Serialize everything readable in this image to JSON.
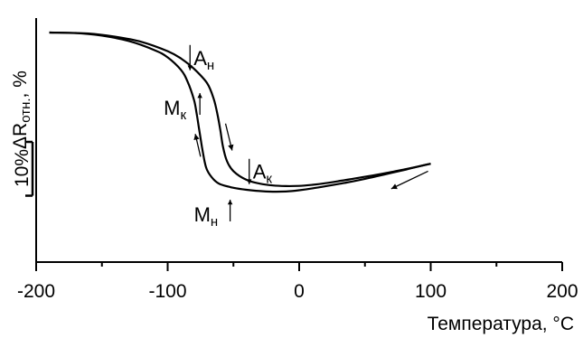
{
  "chart_data": {
    "type": "line",
    "title": "",
    "xlabel": "Температура, °С",
    "ylabel": "ΔR",
    "ylabel_sub": "отн.",
    "ylabel_unit": ", %",
    "xlim": [
      -200,
      200
    ],
    "xticks": [
      {
        "value": -200,
        "label": "-200"
      },
      {
        "value": -100,
        "label": "-100"
      },
      {
        "value": 0,
        "label": "0"
      },
      {
        "value": 100,
        "label": "100"
      },
      {
        "value": 200,
        "label": "200"
      }
    ],
    "x_minor_step": 50,
    "yticks": [],
    "grid": false,
    "legend": "none",
    "scale_bar": {
      "label": "10%",
      "value": 10
    },
    "series": [
      {
        "role": "cooling",
        "points": [
          [
            -190,
            100
          ],
          [
            -170,
            99.8
          ],
          [
            -150,
            98.5
          ],
          [
            -130,
            96
          ],
          [
            -110,
            91.5
          ],
          [
            -100,
            88
          ],
          [
            -90,
            82
          ],
          [
            -85,
            76.5
          ],
          [
            -80,
            67.5
          ],
          [
            -78,
            61
          ],
          [
            -76,
            53
          ],
          [
            -74,
            45
          ],
          [
            -72,
            38
          ],
          [
            -70,
            33.5
          ],
          [
            -65,
            29
          ],
          [
            -60,
            26.7
          ],
          [
            -50,
            25
          ],
          [
            -40,
            24
          ],
          [
            -30,
            23.4
          ],
          [
            -20,
            23.1
          ],
          [
            -10,
            23.2
          ],
          [
            0,
            23.8
          ],
          [
            10,
            24.7
          ],
          [
            20,
            25.7
          ],
          [
            30,
            26.8
          ],
          [
            40,
            28
          ],
          [
            50,
            29.3
          ],
          [
            60,
            30.7
          ],
          [
            70,
            32.2
          ],
          [
            80,
            33.6
          ],
          [
            90,
            35.2
          ],
          [
            100,
            36.6
          ]
        ]
      },
      {
        "role": "heating",
        "points": [
          [
            100,
            36.6
          ],
          [
            90,
            35.2
          ],
          [
            80,
            33.9
          ],
          [
            70,
            32.6
          ],
          [
            60,
            31.4
          ],
          [
            50,
            30.3
          ],
          [
            40,
            29.2
          ],
          [
            30,
            28.2
          ],
          [
            20,
            27.2
          ],
          [
            10,
            26.4
          ],
          [
            0,
            25.9
          ],
          [
            -10,
            25.8
          ],
          [
            -20,
            26.1
          ],
          [
            -30,
            27
          ],
          [
            -40,
            28.8
          ],
          [
            -50,
            33
          ],
          [
            -55,
            38
          ],
          [
            -58,
            45
          ],
          [
            -60,
            53
          ],
          [
            -62,
            60
          ],
          [
            -65,
            68
          ],
          [
            -70,
            75.5
          ],
          [
            -80,
            82.5
          ],
          [
            -90,
            87.5
          ],
          [
            -100,
            91
          ],
          [
            -120,
            95.5
          ],
          [
            -140,
            98
          ],
          [
            -160,
            99.5
          ],
          [
            -190,
            100
          ]
        ]
      }
    ],
    "annotations": [
      {
        "main": "A",
        "sub": "н",
        "x": -83,
        "y": 83.5,
        "arrow": "down"
      },
      {
        "main": "M",
        "sub": "к",
        "x": -103,
        "y": 62,
        "arrow": "up"
      },
      {
        "main": "A",
        "sub": "к",
        "x": -38,
        "y": 28.5,
        "arrow": "down"
      },
      {
        "main": "M",
        "sub": "н",
        "x": -80,
        "y": 10.5,
        "arrow": "up"
      }
    ],
    "direction_arrows": [
      {
        "from": [
          -56,
          56
        ],
        "to": [
          -51,
          43
        ]
      },
      {
        "from": [
          -75,
          40
        ],
        "to": [
          -79,
          51
        ]
      },
      {
        "from": [
          98,
          33
        ],
        "to": [
          70,
          24.5
        ]
      }
    ]
  }
}
